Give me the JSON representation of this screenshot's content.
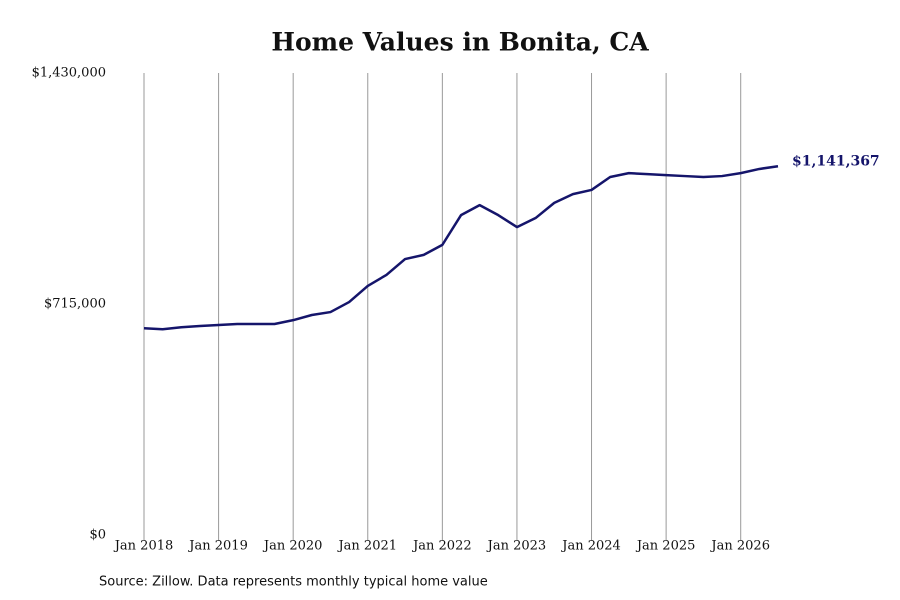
{
  "chart_data": {
    "type": "line",
    "title": "Home Values in Bonita, CA",
    "source": "Source: Zillow. Data represents monthly typical home value",
    "x": [
      "2018-01",
      "2018-04",
      "2018-07",
      "2018-10",
      "2019-01",
      "2019-04",
      "2019-07",
      "2019-10",
      "2020-01",
      "2020-04",
      "2020-07",
      "2020-10",
      "2021-01",
      "2021-04",
      "2021-07",
      "2021-10",
      "2022-01",
      "2022-04",
      "2022-07",
      "2022-10",
      "2023-01",
      "2023-04",
      "2023-07",
      "2023-10",
      "2024-01",
      "2024-04",
      "2024-07",
      "2024-10",
      "2025-01",
      "2025-04",
      "2025-07",
      "2025-10",
      "2026-01",
      "2026-04",
      "2026-07"
    ],
    "series": [
      {
        "name": "Bonita, CA",
        "color": "#15156b",
        "values": [
          640000,
          637000,
          643000,
          647000,
          650000,
          653000,
          653000,
          653000,
          665000,
          681000,
          690000,
          721000,
          771000,
          805000,
          854000,
          867000,
          898000,
          990000,
          1021000,
          990000,
          953000,
          981000,
          1028000,
          1055000,
          1068000,
          1108000,
          1120000,
          1117000,
          1114000,
          1111000,
          1108000,
          1111000,
          1120000,
          1133000,
          1141367
        ],
        "value_labels": [
          null,
          null,
          null,
          null,
          null,
          null,
          null,
          null,
          null,
          null,
          null,
          null,
          null,
          null,
          null,
          null,
          null,
          null,
          null,
          null,
          null,
          null,
          null,
          null,
          null,
          null,
          null,
          null,
          null,
          null,
          null,
          null,
          null,
          null,
          "$1,141,367"
        ]
      }
    ],
    "xlim": [
      "2018-01",
      "2026-07"
    ],
    "xticks": [
      {
        "value": "2018-01",
        "label": "Jan 2018"
      },
      {
        "value": "2019-01",
        "label": "Jan 2019"
      },
      {
        "value": "2020-01",
        "label": "Jan 2020"
      },
      {
        "value": "2021-01",
        "label": "Jan 2021"
      },
      {
        "value": "2022-01",
        "label": "Jan 2022"
      },
      {
        "value": "2023-01",
        "label": "Jan 2023"
      },
      {
        "value": "2024-01",
        "label": "Jan 2024"
      },
      {
        "value": "2025-01",
        "label": "Jan 2025"
      },
      {
        "value": "2026-01",
        "label": "Jan 2026"
      }
    ],
    "ylim": [
      0,
      1430000
    ],
    "yticks": [
      {
        "value": 0,
        "label": "$0"
      },
      {
        "value": 715000,
        "label": "$715,000"
      },
      {
        "value": 1430000,
        "label": "$1,430,000"
      }
    ],
    "grid": "x"
  }
}
